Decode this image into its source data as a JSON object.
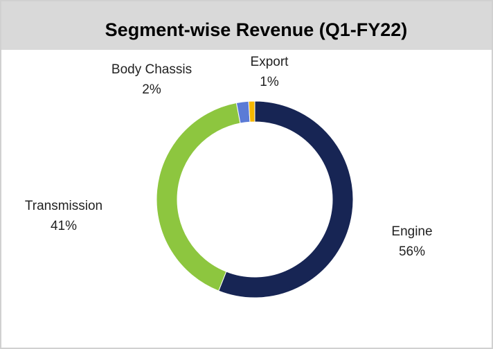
{
  "chart_data": {
    "type": "donut",
    "title": "Segment-wise Revenue (Q1-FY22)",
    "categories": [
      "Engine",
      "Transmission",
      "Body Chassis",
      "Export"
    ],
    "values": [
      56,
      41,
      2,
      1
    ],
    "value_labels": [
      "56%",
      "41%",
      "2%",
      "1%"
    ],
    "colors": [
      "#172554",
      "#8dc63f",
      "#5b7bd6",
      "#f5b700"
    ]
  }
}
